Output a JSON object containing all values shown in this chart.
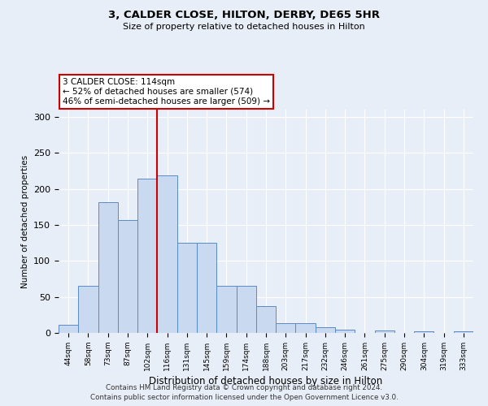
{
  "title1": "3, CALDER CLOSE, HILTON, DERBY, DE65 5HR",
  "title2": "Size of property relative to detached houses in Hilton",
  "xlabel": "Distribution of detached houses by size in Hilton",
  "ylabel": "Number of detached properties",
  "categories": [
    "44sqm",
    "58sqm",
    "73sqm",
    "87sqm",
    "102sqm",
    "116sqm",
    "131sqm",
    "145sqm",
    "159sqm",
    "174sqm",
    "188sqm",
    "203sqm",
    "217sqm",
    "232sqm",
    "246sqm",
    "261sqm",
    "275sqm",
    "290sqm",
    "304sqm",
    "319sqm",
    "333sqm"
  ],
  "values": [
    11,
    65,
    182,
    157,
    214,
    219,
    125,
    125,
    65,
    65,
    37,
    13,
    13,
    8,
    5,
    0,
    3,
    0,
    2,
    0,
    2
  ],
  "bar_color": "#c9d9f0",
  "bar_edge_color": "#5a8ac6",
  "vline_color": "#cc0000",
  "vline_pos": 4.5,
  "annotation_text": "3 CALDER CLOSE: 114sqm\n← 52% of detached houses are smaller (574)\n46% of semi-detached houses are larger (509) →",
  "annotation_box_color": "#ffffff",
  "annotation_box_edge": "#cc0000",
  "background_color": "#e8eef7",
  "grid_color": "#ffffff",
  "footer_line1": "Contains HM Land Registry data © Crown copyright and database right 2024.",
  "footer_line2": "Contains public sector information licensed under the Open Government Licence v3.0.",
  "ylim": [
    0,
    310
  ],
  "yticks": [
    0,
    50,
    100,
    150,
    200,
    250,
    300
  ]
}
